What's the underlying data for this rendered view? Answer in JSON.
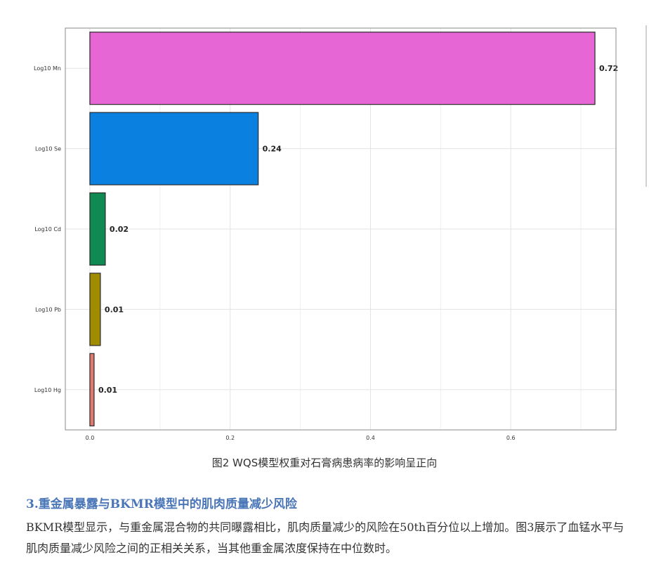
{
  "chart_data": {
    "type": "bar",
    "orientation": "horizontal",
    "categories": [
      "Log10 Mn",
      "Log10 Se",
      "Log10 Cd",
      "Log10 Pb",
      "Log10 Hg"
    ],
    "values": [
      0.72,
      0.24,
      0.022,
      0.015,
      0.006
    ],
    "data_labels": [
      "0.72",
      "0.24",
      "0.02",
      "0.01",
      "0.01"
    ],
    "colors": [
      "#e566d4",
      "#0a80e0",
      "#0f8a52",
      "#a08c00",
      "#e07a6e"
    ],
    "bar_border_color": "#2b2b2b",
    "xlim": [
      -0.035,
      0.75
    ],
    "xticks": [
      0.0,
      0.2,
      0.4,
      0.6
    ],
    "xtick_labels": [
      "0.0",
      "0.2",
      "0.4",
      "0.6"
    ],
    "grid": true,
    "title": "",
    "xlabel": "",
    "ylabel": ""
  },
  "caption": "图2 WQS模型权重对石膏病患病率的影响呈正向",
  "section": {
    "heading": "3.重金属暴露与BKMR模型中的肌肉质量减少风险",
    "body": "BKMR模型显示，与重金属混合物的共同曝露相比，肌肉质量减少的风险在50th百分位以上增加。图3展示了血锰水平与肌肉质量减少风险之间的正相关关系，当其他重金属浓度保持在中位数时。"
  }
}
